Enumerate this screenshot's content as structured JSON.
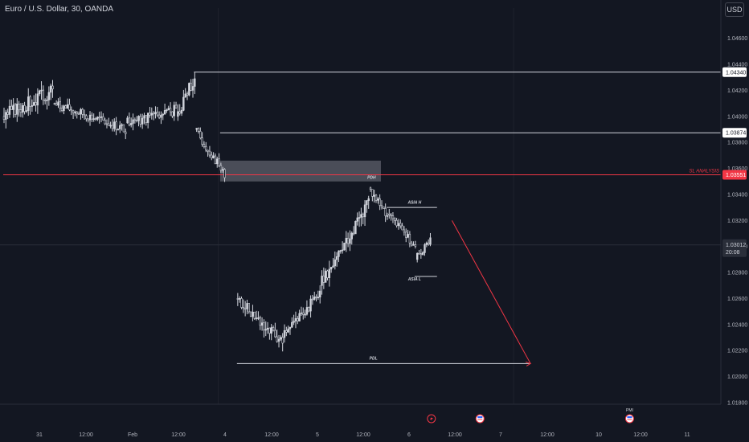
{
  "header": {
    "symbol_title": "Euro / U.S. Dollar, 30, OANDA",
    "currency_button": "USD"
  },
  "colors": {
    "background": "#131722",
    "up": "#d1d4dc",
    "down": "#d1d4dc",
    "sl_line": "#f23645",
    "text": "#b2b5be"
  },
  "chart_data": {
    "type": "candlestick",
    "title": "Euro / U.S. Dollar, 30, OANDA",
    "ylim": [
      1.0175,
      1.0475
    ],
    "y_ticks": [
      "1.04600",
      "1.04400",
      "1.04200",
      "1.04000",
      "1.03800",
      "1.03600",
      "1.03400",
      "1.03200",
      "1.03000",
      "1.02800",
      "1.02600",
      "1.02400",
      "1.02200",
      "1.02000",
      "1.01800"
    ],
    "x_ticks": [
      "31",
      "12:00",
      "Feb",
      "12:00",
      "4",
      "12:00",
      "5",
      "12:00",
      "6",
      "12:00",
      "7",
      "12:00",
      "10",
      "12:00",
      "11"
    ],
    "x_range": [
      0,
      300
    ],
    "segments": [
      {
        "start": 0,
        "end": 27,
        "from": 1.04,
        "to": 1.042,
        "vol": 0.0009,
        "seed": 3
      },
      {
        "start": 27,
        "end": 66,
        "from": 1.041,
        "to": 1.039,
        "vol": 0.0006,
        "seed": 7
      },
      {
        "start": 66,
        "end": 93,
        "from": 1.0395,
        "to": 1.0405,
        "vol": 0.0007,
        "seed": 11
      },
      {
        "start": 93,
        "end": 103,
        "from": 1.04,
        "to": 1.043,
        "vol": 0.0008,
        "seed": 13
      },
      {
        "start": 103,
        "end": 119,
        "from": 1.039,
        "to": 1.0355,
        "vol": 0.0006,
        "seed": 17
      },
      {
        "start": 125,
        "end": 150,
        "from": 1.026,
        "to": 1.0225,
        "vol": 0.0008,
        "seed": 19
      },
      {
        "start": 150,
        "end": 170,
        "from": 1.023,
        "to": 1.0265,
        "vol": 0.0007,
        "seed": 23
      },
      {
        "start": 170,
        "end": 196,
        "from": 1.027,
        "to": 1.0335,
        "vol": 0.0009,
        "seed": 29
      },
      {
        "start": 196,
        "end": 206,
        "from": 1.0345,
        "to": 1.0325,
        "vol": 0.0006,
        "seed": 31
      },
      {
        "start": 206,
        "end": 221,
        "from": 1.0325,
        "to": 1.03,
        "vol": 0.0005,
        "seed": 37
      },
      {
        "start": 221,
        "end": 229,
        "from": 1.029,
        "to": 1.0305,
        "vol": 0.0005,
        "seed": 41
      }
    ],
    "levels": [
      {
        "value": 1.0434,
        "label": "1.04340",
        "x_start": 102,
        "color": "#d1d4dc"
      },
      {
        "value": 1.03874,
        "label": "1.03874",
        "x_start": 116,
        "color": "#d1d4dc"
      },
      {
        "value": 1.03551,
        "label": "1.03551",
        "x_start": 0,
        "color": "#f23645",
        "name": "SL ANALYSIS"
      }
    ],
    "current_price": {
      "value": 1.03012,
      "label": "1.03012",
      "countdown": "20:08"
    },
    "zone": {
      "x_from": 116,
      "x_to": 202,
      "y_from": 1.0366,
      "y_to": 1.035
    },
    "markers": [
      {
        "label": "PDH",
        "x": 197,
        "y": 1.0352
      },
      {
        "label": "ASIA H",
        "x": 220,
        "y": 1.0333,
        "line_from": 205,
        "line_to": 232,
        "line_y": 1.033
      },
      {
        "label": "ASIA L",
        "x": 220,
        "y": 1.0274,
        "line_from": 220,
        "line_to": 232,
        "line_y": 1.0277
      },
      {
        "label": "PDL",
        "x": 198,
        "y": 1.0213,
        "line_from": 125,
        "line_to": 282,
        "line_y": 1.021
      }
    ],
    "arrow": {
      "x_from": 240,
      "y_from": 1.032,
      "x_to": 282,
      "y_to": 1.021
    },
    "events": [
      {
        "icon": "lightning-icon",
        "x": 229
      },
      {
        "icon": "flag-icon",
        "x": 255
      },
      {
        "icon": "flag-icon",
        "x": 335,
        "label": "PMI"
      },
      {
        "icon": "globe-icon",
        "x": 466
      },
      {
        "icon": "flag-icon",
        "x": 489
      },
      {
        "icon": "flag-icon",
        "x": 494
      }
    ],
    "sessions_x": [
      115,
      273,
      432,
      590
    ]
  }
}
